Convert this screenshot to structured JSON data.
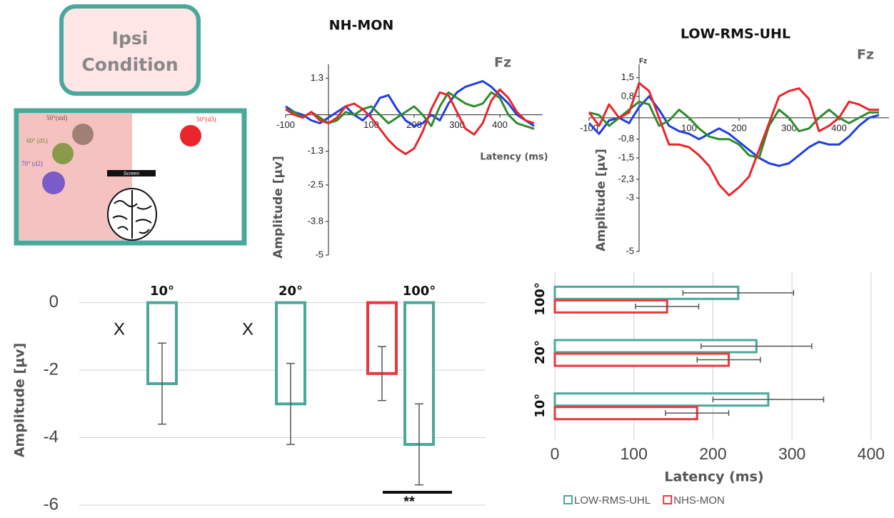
{
  "condition": {
    "lines": [
      "Ipsi",
      "Condition"
    ]
  },
  "diagram": {
    "labels": [
      "50°(std)",
      "60° (d1)",
      "70° (d2)",
      "50°(d3)",
      "Screen"
    ]
  },
  "chart_data": [
    {
      "type": "line",
      "title": "NH-MON",
      "electrode": "Fz",
      "x_label": "Latency (ms)",
      "y_label": "Amplitude [µv]",
      "x": [
        -100,
        -80,
        -60,
        -40,
        -20,
        0,
        20,
        40,
        60,
        80,
        100,
        120,
        140,
        160,
        180,
        200,
        220,
        240,
        260,
        280,
        300,
        320,
        340,
        360,
        380,
        400,
        420,
        440,
        460,
        480
      ],
      "series": [
        {
          "color": "#1f3fe0",
          "values": [
            0.3,
            0.1,
            0,
            -0.2,
            -0.3,
            -0.1,
            0.1,
            0.3,
            0,
            -0.2,
            0.1,
            0.6,
            0.7,
            0.2,
            -0.2,
            -0.4,
            -0.3,
            0,
            -0.2,
            0.4,
            0.8,
            1.0,
            1.1,
            1.2,
            1.0,
            0.7,
            0.4,
            0,
            -0.2,
            -0.4
          ]
        },
        {
          "color": "#2e8b2e",
          "values": [
            0.2,
            0.1,
            -0.1,
            0.1,
            -0.1,
            -0.3,
            -0.2,
            0.1,
            0,
            0.2,
            0.3,
            0,
            -0.3,
            -0.1,
            0.1,
            0.3,
            0,
            -0.4,
            0.3,
            0.8,
            0.6,
            0.4,
            0.3,
            0.4,
            0.8,
            0.6,
            0,
            -0.3,
            -0.4,
            -0.5
          ]
        },
        {
          "color": "#e8262b",
          "values": [
            0.2,
            0,
            -0.1,
            0.1,
            -0.2,
            -0.3,
            -0.1,
            0.3,
            0.4,
            0.2,
            -0.1,
            -0.5,
            -0.9,
            -1.2,
            -1.4,
            -1.2,
            -0.6,
            0.2,
            0.8,
            0.7,
            0.1,
            -0.5,
            -0.7,
            -0.3,
            0.5,
            0.9,
            0.6,
            0.1,
            -0.2,
            -0.3
          ]
        }
      ],
      "xlim": [
        -100,
        500
      ],
      "ylim": [
        -5,
        1.8
      ],
      "xticks": [
        -100,
        100,
        200,
        300,
        400
      ],
      "yticks": [
        1.3,
        -1.3,
        -2.5,
        -3.8,
        -5
      ]
    },
    {
      "type": "line",
      "title": "LOW-RMS-UHL",
      "electrode": "Fz",
      "axis_electrode": "Fz",
      "y_label": "Amplitude [µv]",
      "x": [
        -100,
        -80,
        -60,
        -40,
        -20,
        0,
        20,
        40,
        60,
        80,
        100,
        120,
        140,
        160,
        180,
        200,
        220,
        240,
        260,
        280,
        300,
        320,
        340,
        360,
        380,
        400,
        420,
        440,
        460,
        480
      ],
      "series": [
        {
          "color": "#1f3fe0",
          "values": [
            -0.2,
            -0.6,
            -0.1,
            0,
            -0.2,
            0.4,
            0.8,
            0.3,
            -0.3,
            -0.5,
            -0.6,
            -0.8,
            -0.6,
            -0.4,
            -0.6,
            -0.9,
            -1.2,
            -1.5,
            -1.7,
            -1.8,
            -1.7,
            -1.4,
            -1.1,
            -0.9,
            -1.0,
            -1.0,
            -0.7,
            -0.3,
            0,
            0.1
          ]
        },
        {
          "color": "#2e8b2e",
          "values": [
            0.2,
            0.1,
            -0.3,
            0,
            0.3,
            0.6,
            0.5,
            -0.3,
            -0.1,
            0.3,
            0,
            -0.4,
            -0.7,
            -0.8,
            -0.8,
            -1.0,
            -1.4,
            -1.5,
            -0.3,
            0.3,
            0,
            -0.5,
            -0.4,
            0,
            0.3,
            0,
            -0.2,
            0,
            0.2,
            0.2
          ]
        },
        {
          "color": "#e8262b",
          "values": [
            0.2,
            -0.3,
            0.5,
            0,
            0.2,
            1.3,
            1.0,
            0,
            -1.0,
            -1.0,
            -1.1,
            -1.4,
            -1.8,
            -2.5,
            -2.9,
            -2.6,
            -2.2,
            -1.2,
            -0.2,
            0.8,
            1.0,
            1.1,
            0.7,
            -0.5,
            -0.3,
            0,
            0.6,
            0.5,
            0.3,
            0.3
          ]
        }
      ],
      "xlim": [
        -100,
        500
      ],
      "ylim": [
        -5,
        2
      ],
      "xticks": [
        -100,
        100,
        200,
        300,
        400
      ],
      "yticks": [
        {
          "value": 1.5,
          "label": "1,5"
        },
        {
          "value": 0.8,
          "label": "0,8"
        },
        {
          "value": -0.8,
          "label": "-0,8"
        },
        {
          "value": -1.5,
          "label": "-1,5"
        },
        {
          "value": -2.3,
          "label": "-2,3"
        },
        -3,
        -5
      ]
    },
    {
      "type": "bar",
      "y_label": "Amplitude [µv]",
      "categories": [
        "10°",
        "20°",
        "100°"
      ],
      "series": [
        {
          "color": "#e8383d",
          "values": [
            null,
            null,
            -2.1
          ],
          "errors": [
            null,
            null,
            0.8
          ]
        },
        {
          "color": "#4aa89b",
          "values": [
            -2.4,
            -3.0,
            -4.2
          ],
          "errors": [
            1.2,
            1.2,
            1.2
          ]
        }
      ],
      "missing_marker": "X",
      "significance": "**",
      "ylim": [
        -6,
        0.5
      ],
      "yticks": [
        0,
        -2,
        -4,
        -6
      ],
      "grid": true
    },
    {
      "type": "hbar",
      "x_label": "Latency (ms)",
      "categories": [
        "10°",
        "20°",
        "100°"
      ],
      "series": [
        {
          "name": "LOW-RMS-UHL",
          "color": "#4aa89b",
          "values": [
            270,
            255,
            232
          ],
          "errors": [
            70,
            70,
            70
          ]
        },
        {
          "name": "NHS-MON",
          "color": "#e8383d",
          "values": [
            180,
            220,
            142
          ],
          "errors": [
            40,
            40,
            40
          ]
        }
      ],
      "xlim": [
        0,
        420
      ],
      "xticks": [
        0,
        100,
        200,
        300,
        400
      ],
      "grid": true,
      "legend": "bottom"
    }
  ]
}
